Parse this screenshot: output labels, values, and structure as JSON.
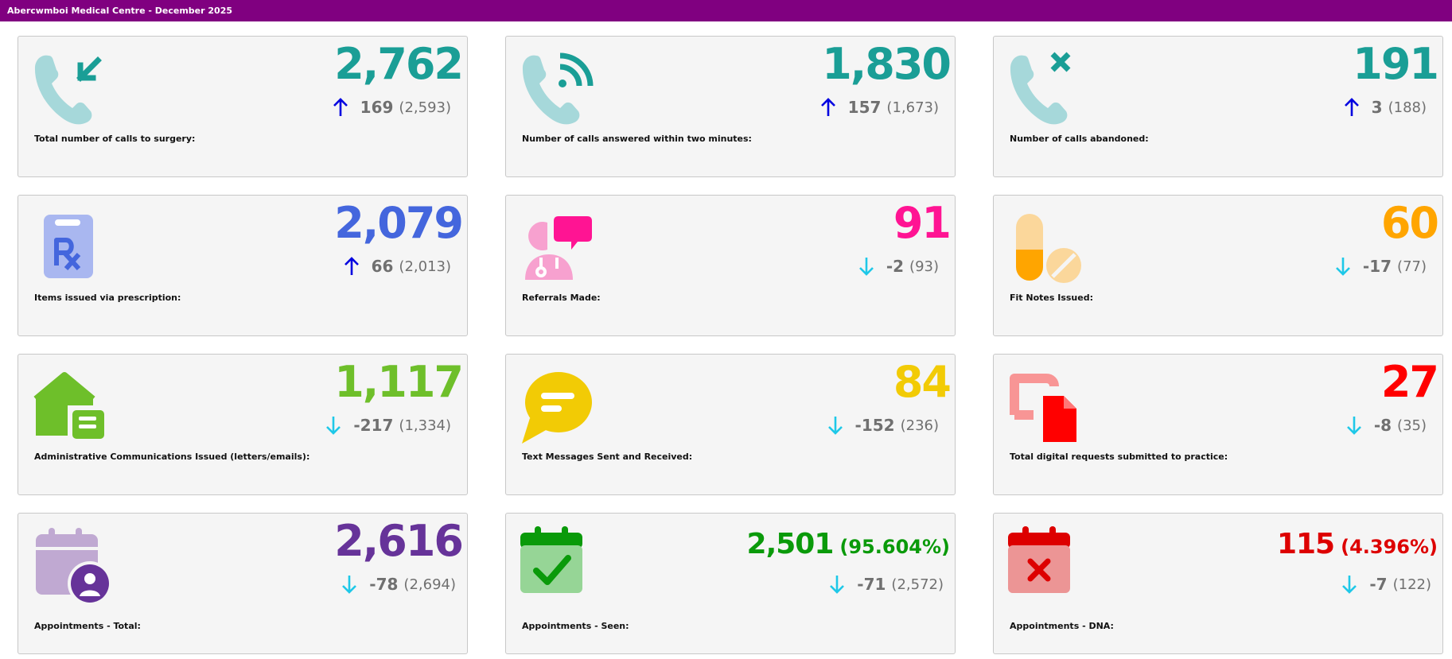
{
  "header": {
    "title": "Abercwmboi Medical Centre - December 2025"
  },
  "colors": {
    "header_bg": "#800080",
    "up_arrow": "#0000e0",
    "down_arrow": "#1ec8e8",
    "muted": "#707070"
  },
  "cards": [
    {
      "label": "Total number of calls to surgery:",
      "value": "2,762",
      "change": "169",
      "previous": "(2,593)",
      "trend": "up",
      "color": "#1a9e96",
      "icon": "phone-incoming-icon"
    },
    {
      "label": "Number of calls answered within two minutes:",
      "value": "1,830",
      "change": "157",
      "previous": "(1,673)",
      "trend": "up",
      "color": "#1a9e96",
      "icon": "phone-answered-icon"
    },
    {
      "label": "Number of calls abandoned:",
      "value": "191",
      "change": "3",
      "previous": "(188)",
      "trend": "up",
      "color": "#1a9e96",
      "icon": "phone-missed-icon"
    },
    {
      "label": "Items issued via prescription:",
      "value": "2,079",
      "change": "66",
      "previous": "(2,013)",
      "trend": "up",
      "color": "#4466dd",
      "icon": "prescription-clipboard-icon"
    },
    {
      "label": "Referrals Made:",
      "value": "91",
      "change": "-2",
      "previous": "(93)",
      "trend": "down",
      "color": "#ff1493",
      "icon": "doctor-referral-icon"
    },
    {
      "label": "Fit Notes Issued:",
      "value": "60",
      "change": "-17",
      "previous": "(77)",
      "trend": "down",
      "color": "#ffa500",
      "icon": "pills-icon"
    },
    {
      "label": "Administrative Communications Issued (letters/emails):",
      "value": "1,117",
      "change": "-217",
      "previous": "(1,334)",
      "trend": "down",
      "color": "#6ebf2a",
      "icon": "envelope-document-icon"
    },
    {
      "label": "Text Messages Sent and Received:",
      "value": "84",
      "change": "-152",
      "previous": "(236)",
      "trend": "down",
      "color": "#f2cb05",
      "icon": "chat-bubble-icon"
    },
    {
      "label": "Total digital requests submitted to practice:",
      "value": "27",
      "change": "-8",
      "previous": "(35)",
      "trend": "down",
      "color": "#ff0000",
      "icon": "digital-document-icon"
    },
    {
      "label": "Appointments - Total:",
      "value": "2,616",
      "pct": "",
      "change": "-78",
      "previous": "(2,694)",
      "trend": "down",
      "color": "#663399",
      "icon": "calendar-user-icon"
    },
    {
      "label": "Appointments - Seen:",
      "value": "2,501",
      "pct": "(95.604%)",
      "change": "-71",
      "previous": "(2,572)",
      "trend": "down",
      "color": "#0a9a0a",
      "icon": "calendar-check-icon"
    },
    {
      "label": "Appointments - DNA:",
      "value": "115",
      "pct": "(4.396%)",
      "change": "-7",
      "previous": "(122)",
      "trend": "down",
      "color": "#dd0000",
      "icon": "calendar-cross-icon"
    }
  ]
}
